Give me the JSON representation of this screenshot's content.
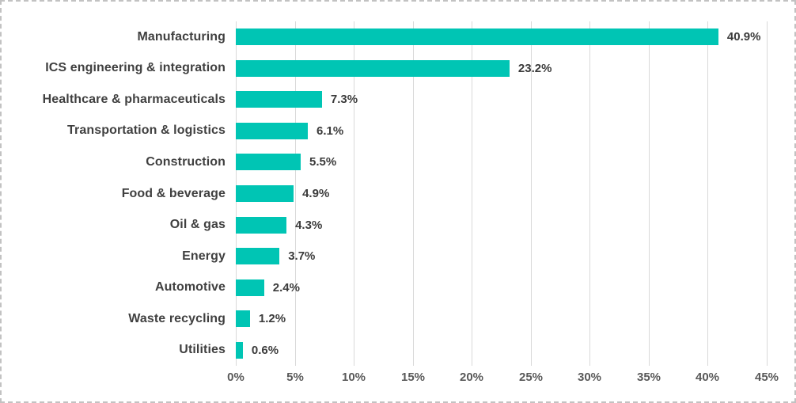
{
  "chart_data": {
    "type": "bar",
    "orientation": "horizontal",
    "title": "",
    "xlabel": "",
    "ylabel": "",
    "categories": [
      "Manufacturing",
      "ICS engineering & integration",
      "Healthcare & pharmaceuticals",
      "Transportation & logistics",
      "Construction",
      "Food & beverage",
      "Oil & gas",
      "Energy",
      "Automotive",
      "Waste recycling",
      "Utilities"
    ],
    "values": [
      40.9,
      23.2,
      7.3,
      6.1,
      5.5,
      4.9,
      4.3,
      3.7,
      2.4,
      1.2,
      0.6
    ],
    "value_labels": [
      "40.9%",
      "23.2%",
      "7.3%",
      "6.1%",
      "5.5%",
      "4.9%",
      "4.3%",
      "3.7%",
      "2.4%",
      "1.2%",
      "0.6%"
    ],
    "x_ticks": [
      "0%",
      "5%",
      "10%",
      "15%",
      "20%",
      "25%",
      "30%",
      "35%",
      "40%",
      "45%"
    ],
    "xlim": [
      0,
      45
    ],
    "grid": "vertical-only",
    "legend": "none",
    "colors": {
      "bar": "#00C5B4",
      "gridline": "#D9D9D9",
      "category_label": "#404040",
      "value_label": "#3B3B3B",
      "tick_label": "#595959"
    }
  }
}
